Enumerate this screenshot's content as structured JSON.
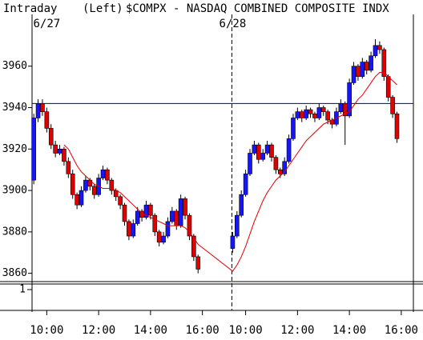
{
  "chart_data": {
    "type": "candlestick",
    "title": "$COMPX - NASDAQ COMBINED COMPOSITE INDX",
    "mode_label": "Intraday",
    "axis_side_label": "(Left)",
    "date_labels": [
      {
        "value": 3,
        "label": "6/27"
      },
      {
        "value": 46,
        "label": "6/28"
      }
    ],
    "x": [
      0,
      1,
      2,
      3,
      4,
      5,
      6,
      7,
      8,
      9,
      10,
      11,
      12,
      13,
      14,
      15,
      16,
      17,
      18,
      19,
      20,
      21,
      22,
      23,
      24,
      25,
      26,
      27,
      28,
      29,
      30,
      31,
      32,
      33,
      34,
      35,
      36,
      37,
      38,
      46,
      47,
      48,
      49,
      50,
      51,
      52,
      53,
      54,
      55,
      56,
      57,
      58,
      59,
      60,
      61,
      62,
      63,
      64,
      65,
      66,
      67,
      68,
      69,
      70,
      71,
      72,
      73,
      74,
      75,
      76,
      77,
      78,
      79,
      80,
      81,
      82,
      83,
      84
    ],
    "ohlc": [
      [
        3905,
        3937,
        3903,
        3935
      ],
      [
        3935,
        3944,
        3933,
        3942
      ],
      [
        3942,
        3944,
        3936,
        3938
      ],
      [
        3938,
        3940,
        3928,
        3930
      ],
      [
        3930,
        3932,
        3920,
        3922
      ],
      [
        3922,
        3924,
        3916,
        3918
      ],
      [
        3918,
        3922,
        3917,
        3920
      ],
      [
        3920,
        3921,
        3912,
        3914
      ],
      [
        3914,
        3916,
        3906,
        3908
      ],
      [
        3908,
        3910,
        3896,
        3898
      ],
      [
        3898,
        3899,
        3891,
        3893
      ],
      [
        3893,
        3902,
        3892,
        3900
      ],
      [
        3900,
        3907,
        3899,
        3905
      ],
      [
        3905,
        3906,
        3900,
        3902
      ],
      [
        3902,
        3903,
        3896,
        3898
      ],
      [
        3898,
        3908,
        3897,
        3906
      ],
      [
        3906,
        3912,
        3905,
        3910
      ],
      [
        3910,
        3911,
        3903,
        3905
      ],
      [
        3905,
        3906,
        3898,
        3900
      ],
      [
        3900,
        3901,
        3895,
        3897
      ],
      [
        3897,
        3898,
        3891,
        3893
      ],
      [
        3893,
        3894,
        3883,
        3885
      ],
      [
        3885,
        3886,
        3876,
        3878
      ],
      [
        3878,
        3886,
        3877,
        3884
      ],
      [
        3884,
        3892,
        3883,
        3890
      ],
      [
        3890,
        3891,
        3885,
        3887
      ],
      [
        3887,
        3895,
        3886,
        3893
      ],
      [
        3893,
        3894,
        3886,
        3888
      ],
      [
        3888,
        3889,
        3878,
        3880
      ],
      [
        3880,
        3881,
        3873,
        3875
      ],
      [
        3875,
        3880,
        3874,
        3878
      ],
      [
        3878,
        3887,
        3877,
        3885
      ],
      [
        3885,
        3892,
        3884,
        3890
      ],
      [
        3890,
        3891,
        3881,
        3883
      ],
      [
        3883,
        3898,
        3882,
        3896
      ],
      [
        3896,
        3897,
        3886,
        3888
      ],
      [
        3888,
        3889,
        3876,
        3878
      ],
      [
        3878,
        3879,
        3866,
        3868
      ],
      [
        3868,
        3869,
        3860,
        3862
      ],
      [
        3872,
        3880,
        3870,
        3878
      ],
      [
        3878,
        3890,
        3877,
        3888
      ],
      [
        3888,
        3900,
        3887,
        3898
      ],
      [
        3898,
        3910,
        3897,
        3908
      ],
      [
        3908,
        3920,
        3907,
        3918
      ],
      [
        3918,
        3924,
        3917,
        3922
      ],
      [
        3922,
        3923,
        3913,
        3915
      ],
      [
        3915,
        3920,
        3914,
        3918
      ],
      [
        3918,
        3924,
        3917,
        3922
      ],
      [
        3922,
        3923,
        3914,
        3916
      ],
      [
        3916,
        3917,
        3908,
        3910
      ],
      [
        3910,
        3911,
        3906,
        3908
      ],
      [
        3908,
        3916,
        3907,
        3914
      ],
      [
        3914,
        3927,
        3913,
        3925
      ],
      [
        3925,
        3937,
        3924,
        3935
      ],
      [
        3935,
        3940,
        3934,
        3938
      ],
      [
        3938,
        3939,
        3933,
        3935
      ],
      [
        3935,
        3941,
        3934,
        3939
      ],
      [
        3939,
        3940,
        3935,
        3937
      ],
      [
        3937,
        3938,
        3933,
        3935
      ],
      [
        3935,
        3942,
        3934,
        3940
      ],
      [
        3940,
        3941,
        3936,
        3938
      ],
      [
        3938,
        3939,
        3932,
        3934
      ],
      [
        3934,
        3935,
        3930,
        3932
      ],
      [
        3932,
        3940,
        3931,
        3938
      ],
      [
        3938,
        3944,
        3937,
        3942
      ],
      [
        3942,
        3943,
        3922,
        3936
      ],
      [
        3936,
        3954,
        3935,
        3952
      ],
      [
        3952,
        3962,
        3951,
        3960
      ],
      [
        3960,
        3961,
        3953,
        3955
      ],
      [
        3955,
        3964,
        3954,
        3962
      ],
      [
        3962,
        3963,
        3956,
        3958
      ],
      [
        3958,
        3967,
        3957,
        3965
      ],
      [
        3965,
        3973,
        3964,
        3970
      ],
      [
        3970,
        3972,
        3966,
        3968
      ],
      [
        3968,
        3969,
        3953,
        3955
      ],
      [
        3955,
        3956,
        3943,
        3945
      ],
      [
        3945,
        3946,
        3935,
        3937
      ],
      [
        3937,
        3938,
        3923,
        3925
      ]
    ],
    "moving_average": {
      "color": "#e00000",
      "values": [
        null,
        null,
        null,
        null,
        null,
        null,
        null,
        3922,
        3920,
        3916,
        3912,
        3909,
        3907,
        3905,
        3903,
        3902,
        3901,
        3901,
        3901,
        3900,
        3899,
        3897,
        3895,
        3893,
        3891,
        3889,
        3888,
        3887,
        3886,
        3885,
        3884,
        3883,
        3883,
        3883,
        3883,
        3882,
        3880,
        3877,
        3874,
        3861,
        3864,
        3868,
        3873,
        3879,
        3885,
        3890,
        3895,
        3899,
        3902,
        3905,
        3907,
        3909,
        3912,
        3915,
        3918,
        3921,
        3924,
        3926,
        3928,
        3930,
        3932,
        3933,
        3934,
        3935,
        3936,
        3937,
        3938,
        3941,
        3944,
        3946,
        3949,
        3952,
        3955,
        3957,
        3957,
        3955,
        3953,
        3951
      ]
    },
    "up_color": "#1515ff",
    "down_color": "#e00000",
    "reference_line": {
      "value": 3942,
      "color": "#000080"
    },
    "xlim": [
      -0.4,
      87.8
    ],
    "xticks": [
      {
        "value": 3,
        "label": "10:00"
      },
      {
        "value": 15,
        "label": "12:00"
      },
      {
        "value": 27,
        "label": "14:00"
      },
      {
        "value": 39,
        "label": "16:00"
      },
      {
        "value": 49,
        "label": "10:00"
      },
      {
        "value": 61,
        "label": "12:00"
      },
      {
        "value": 73,
        "label": "14:00"
      },
      {
        "value": 85,
        "label": "16:00"
      }
    ],
    "ylim": [
      3856,
      3985
    ],
    "yticks": [
      3860,
      3880,
      3900,
      3920,
      3940,
      3960
    ],
    "volume_pane_label": "1"
  }
}
